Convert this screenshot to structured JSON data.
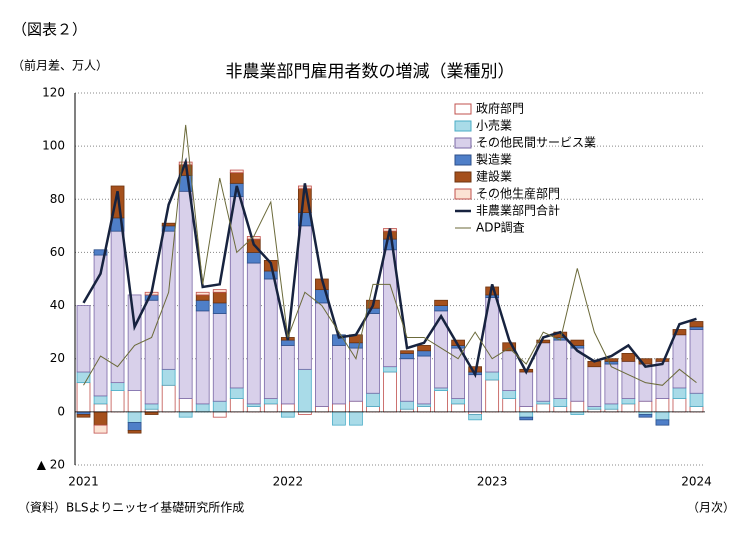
{
  "header": "（図表２）",
  "chart_data": {
    "type": "bar",
    "title": "非農業部門雇用者数の増減（業種別）",
    "y_label": "（前月差、万人）",
    "x_label": "（月次）",
    "source": "（資料）BLSよりニッセイ基礎研究所作成",
    "stacked": true,
    "grid": true,
    "legend": "upper right",
    "ylim": [
      -20,
      120
    ],
    "yticks": [
      {
        "value": -20,
        "label": "▲ 20"
      },
      0,
      20,
      40,
      60,
      80,
      100,
      120
    ],
    "categories": [
      "2021",
      null,
      null,
      null,
      null,
      null,
      null,
      null,
      null,
      null,
      null,
      null,
      "2022",
      null,
      null,
      null,
      null,
      null,
      null,
      null,
      null,
      null,
      null,
      null,
      "2023",
      null,
      null,
      null,
      null,
      null,
      null,
      null,
      null,
      null,
      null,
      null,
      "2024"
    ],
    "series": [
      {
        "name": "政府部門",
        "color": "#ffffff",
        "edge": "#c0504d",
        "values": [
          11,
          3,
          8,
          8,
          1,
          10,
          5,
          0,
          -2,
          5,
          2,
          3,
          3,
          -1,
          2,
          3,
          4,
          2,
          15,
          1,
          2,
          8,
          3,
          -1,
          12,
          5,
          2,
          3,
          2,
          4,
          1,
          1,
          3,
          4,
          5,
          5,
          2
        ]
      },
      {
        "name": "小売業",
        "color": "#a9dbe8",
        "edge": "#4aacc6",
        "values": [
          4,
          3,
          3,
          -4,
          2,
          6,
          -2,
          3,
          4,
          4,
          1,
          2,
          -2,
          16,
          0,
          -5,
          -5,
          5,
          2,
          3,
          1,
          1,
          2,
          -2,
          3,
          3,
          -2,
          1,
          3,
          -1,
          1,
          2,
          2,
          -1,
          -3,
          4,
          5
        ]
      },
      {
        "name": "その他民間サービス業",
        "color": "#d8d0ea",
        "edge": "#7a68a6",
        "values": [
          25,
          53,
          57,
          36,
          39,
          52,
          78,
          35,
          33,
          72,
          53,
          45,
          22,
          54,
          39,
          22,
          20,
          30,
          44,
          16,
          18,
          29,
          19,
          14,
          28,
          15,
          13,
          22,
          22,
          20,
          15,
          15,
          14,
          14,
          14,
          20,
          24
        ]
      },
      {
        "name": "製造業",
        "color": "#4f7fc8",
        "edge": "#2c4f8a",
        "values": [
          -1,
          2,
          5,
          -3,
          2,
          2,
          6,
          4,
          4,
          5,
          4,
          3,
          2,
          5,
          5,
          4,
          2,
          2,
          4,
          2,
          2,
          2,
          1,
          1,
          1,
          0,
          -1,
          0,
          1,
          1,
          0,
          1,
          0,
          -1,
          -2,
          0,
          1
        ]
      },
      {
        "name": "建設業",
        "color": "#a5501c",
        "edge": "#6e3410",
        "values": [
          -1,
          -5,
          12,
          -1,
          -1,
          1,
          4,
          2,
          4,
          4,
          5,
          4,
          1,
          9,
          4,
          0,
          3,
          3,
          3,
          1,
          2,
          2,
          2,
          2,
          3,
          3,
          1,
          1,
          2,
          2,
          2,
          1,
          3,
          2,
          1,
          2,
          2
        ]
      },
      {
        "name": "その他生産部門",
        "color": "#fbe3d4",
        "edge": "#c0504d",
        "values": [
          0,
          -3,
          0,
          0,
          1,
          0,
          1,
          1,
          1,
          1,
          1,
          0,
          0,
          1,
          0,
          0,
          0,
          0,
          1,
          0,
          0,
          0,
          0,
          0,
          0,
          0,
          0,
          0,
          0,
          0,
          0,
          0,
          0,
          0,
          0,
          0,
          0
        ]
      },
      {
        "name": "非農業部門合計",
        "type": "line",
        "color": "#17233f",
        "width": 2.5,
        "values": [
          41,
          52,
          83,
          32,
          45,
          78,
          94,
          47,
          48,
          85,
          63,
          56,
          27,
          86,
          50,
          28,
          29,
          40,
          69,
          24,
          26,
          36,
          25,
          14,
          48,
          27,
          15,
          28,
          30,
          23,
          19,
          21,
          25,
          17,
          18,
          33,
          35
        ]
      },
      {
        "name": "ADP調査",
        "type": "line",
        "color": "#6b6a3a",
        "width": 1,
        "values": [
          10,
          21,
          17,
          25,
          28,
          45,
          108,
          48,
          88,
          60,
          66,
          79,
          28,
          45,
          40,
          30,
          20,
          48,
          48,
          28,
          28,
          24,
          20,
          30,
          20,
          24,
          18,
          30,
          27,
          54,
          30,
          17,
          14,
          11,
          10,
          16,
          11
        ]
      }
    ]
  }
}
